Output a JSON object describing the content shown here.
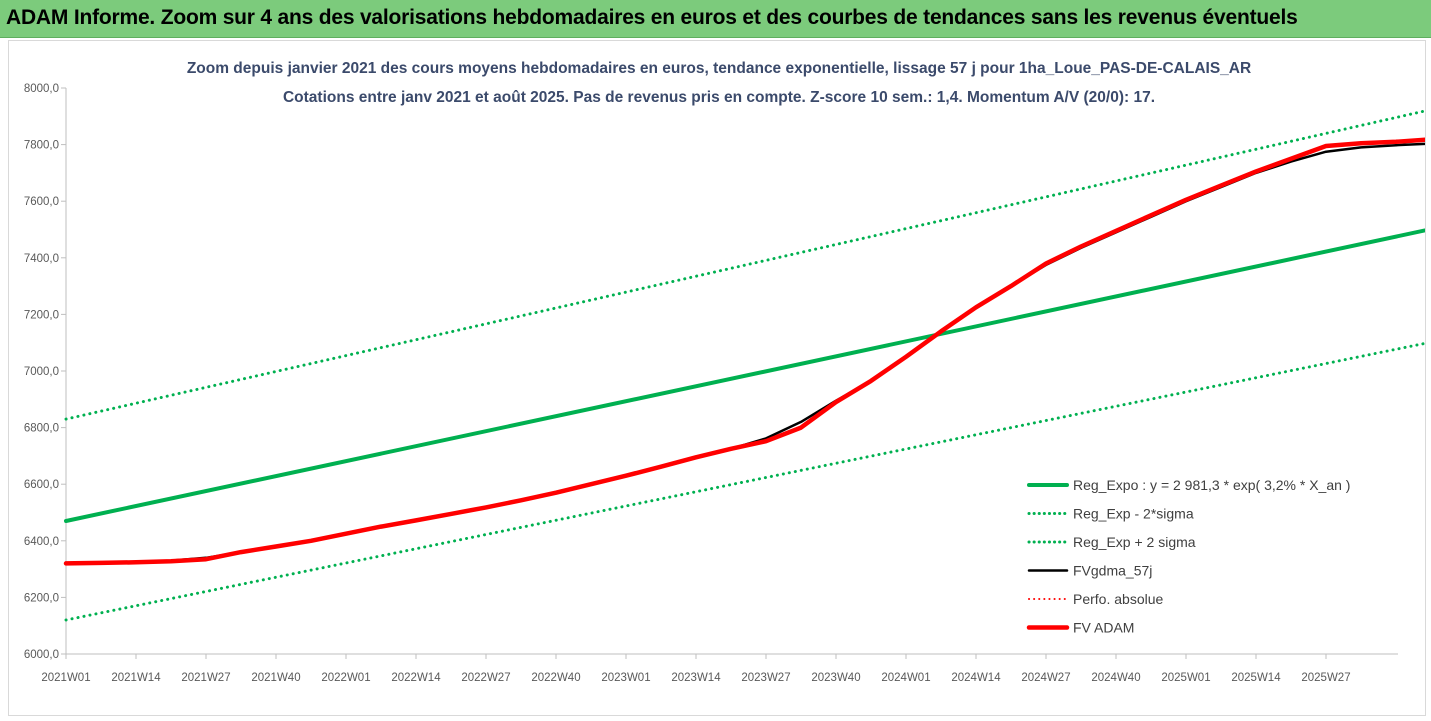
{
  "banner": {
    "title": "ADAM Informe. Zoom sur 4 ans des valorisations hebdomadaires en euros et des courbes de tendances sans les revenus éventuels"
  },
  "chart_data": {
    "type": "line",
    "title": "Zoom depuis janvier 2021 des cours moyens hebdomadaires en euros, tendance exponentielle, lissage 57 j pour 1ha_Loue_PAS-DE-CALAIS_AR",
    "subtitle": "Cotations entre janv 2021 et août 2025. Pas de revenus pris en compte. Z-score 10 sem.: 1,4. Momentum A/V (20/0): 17.",
    "xlabel": "",
    "ylabel": "",
    "ylim": [
      6000,
      8000
    ],
    "grid": false,
    "legend_position": "right",
    "x_ticks": [
      "2021W01",
      "2021W14",
      "2021W27",
      "2021W40",
      "2022W01",
      "2022W14",
      "2022W27",
      "2022W40",
      "2023W01",
      "2023W14",
      "2023W27",
      "2023W40",
      "2024W01",
      "2024W14",
      "2024W27",
      "2024W40",
      "2025W01",
      "2025W14",
      "2025W27"
    ],
    "y_ticks": [
      "6000,0",
      "6200,0",
      "6400,0",
      "6600,0",
      "6800,0",
      "7000,0",
      "7200,0",
      "7400,0",
      "7600,0",
      "7800,0",
      "8000,0"
    ],
    "x_max_index": 19.7,
    "series": [
      {
        "name": "Reg_Expo : y = 2 981,3 * exp( 3,2% *  X_an )",
        "color": "#00b050",
        "style": "solid",
        "width": 4,
        "points": [
          [
            0,
            6470
          ],
          [
            19.7,
            7512
          ]
        ]
      },
      {
        "name": "Reg_Exp - 2*sigma",
        "color": "#00b050",
        "style": "dotted",
        "width": 3,
        "points": [
          [
            0,
            6120
          ],
          [
            19.7,
            7112
          ]
        ]
      },
      {
        "name": "Reg_Exp + 2 sigma",
        "color": "#00b050",
        "style": "dotted",
        "width": 3,
        "points": [
          [
            0,
            6830
          ],
          [
            19.7,
            7935
          ]
        ]
      },
      {
        "name": "FVgdma_57j",
        "color": "#000000",
        "style": "solid",
        "width": 2.5,
        "points": [
          [
            0,
            6320
          ],
          [
            0.5,
            6322
          ],
          [
            1,
            6324
          ],
          [
            1.5,
            6330
          ],
          [
            2,
            6340
          ],
          [
            2.5,
            6360
          ],
          [
            3,
            6380
          ],
          [
            3.5,
            6400
          ],
          [
            4,
            6425
          ],
          [
            4.5,
            6450
          ],
          [
            5,
            6472
          ],
          [
            5.5,
            6495
          ],
          [
            6,
            6518
          ],
          [
            6.5,
            6543
          ],
          [
            7,
            6570
          ],
          [
            7.5,
            6600
          ],
          [
            8,
            6630
          ],
          [
            8.5,
            6662
          ],
          [
            9,
            6695
          ],
          [
            9.5,
            6725
          ],
          [
            10,
            6762
          ],
          [
            10.5,
            6820
          ],
          [
            11,
            6895
          ],
          [
            11.5,
            6965
          ],
          [
            12,
            7050
          ],
          [
            12.5,
            7140
          ],
          [
            13,
            7225
          ],
          [
            13.5,
            7300
          ],
          [
            14,
            7375
          ],
          [
            14.5,
            7435
          ],
          [
            15,
            7490
          ],
          [
            15.5,
            7545
          ],
          [
            16,
            7600
          ],
          [
            16.5,
            7650
          ],
          [
            17,
            7700
          ],
          [
            17.5,
            7740
          ],
          [
            18,
            7775
          ],
          [
            18.5,
            7790
          ],
          [
            19,
            7798
          ],
          [
            19.7,
            7806
          ]
        ]
      },
      {
        "name": "Perfo. absolue",
        "color": "#ff0000",
        "style": "dotted",
        "width": 2,
        "points": []
      },
      {
        "name": "FV ADAM",
        "color": "#ff0000",
        "style": "solid",
        "width": 4.5,
        "points": [
          [
            0,
            6320
          ],
          [
            0.5,
            6322
          ],
          [
            1,
            6324
          ],
          [
            1.5,
            6328
          ],
          [
            2,
            6335
          ],
          [
            2.5,
            6360
          ],
          [
            3,
            6380
          ],
          [
            3.5,
            6400
          ],
          [
            4,
            6425
          ],
          [
            4.5,
            6450
          ],
          [
            5,
            6472
          ],
          [
            5.5,
            6495
          ],
          [
            6,
            6518
          ],
          [
            6.5,
            6543
          ],
          [
            7,
            6570
          ],
          [
            7.5,
            6600
          ],
          [
            8,
            6630
          ],
          [
            8.5,
            6662
          ],
          [
            9,
            6695
          ],
          [
            9.5,
            6725
          ],
          [
            10,
            6752
          ],
          [
            10.5,
            6800
          ],
          [
            11,
            6890
          ],
          [
            11.5,
            6965
          ],
          [
            12,
            7050
          ],
          [
            12.5,
            7140
          ],
          [
            13,
            7225
          ],
          [
            13.5,
            7300
          ],
          [
            14,
            7380
          ],
          [
            14.5,
            7440
          ],
          [
            15,
            7495
          ],
          [
            15.5,
            7550
          ],
          [
            16,
            7605
          ],
          [
            16.5,
            7655
          ],
          [
            17,
            7705
          ],
          [
            17.5,
            7750
          ],
          [
            18,
            7795
          ],
          [
            18.5,
            7805
          ],
          [
            19,
            7810
          ],
          [
            19.7,
            7822
          ]
        ]
      }
    ]
  }
}
